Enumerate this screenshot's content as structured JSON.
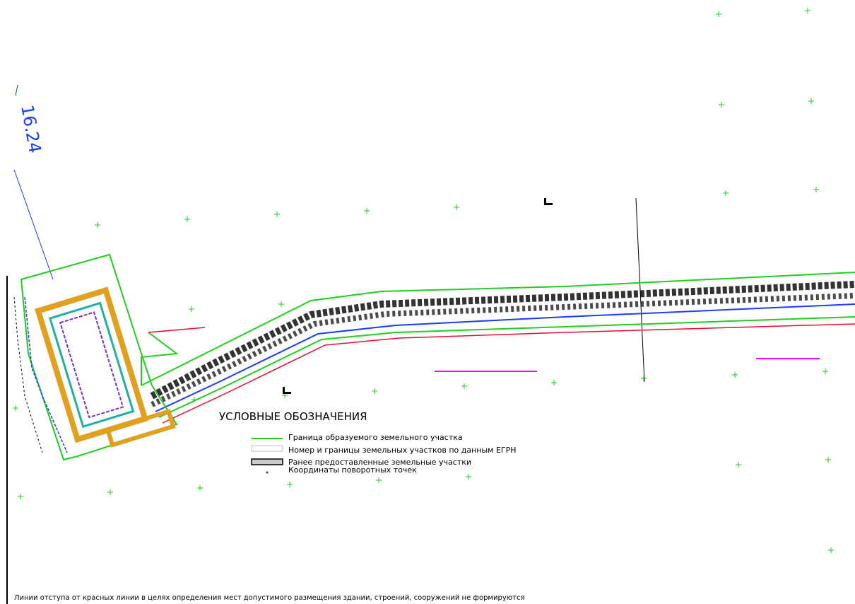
{
  "dimension": "16.24",
  "legend": {
    "title": "УСЛОВНЫЕ ОБОЗНАЧЕНИЯ",
    "items": [
      "Граница образуемого земельного участка",
      "Номер и границы земельных участков по данным ЕГРН",
      "Ранее предоставленные земельные участки",
      "Координаты поворотных точек"
    ]
  },
  "note": "Линии отступа от красных линии в целях определения мест допустимого размещения здании, строений, сооружений не формируются"
}
